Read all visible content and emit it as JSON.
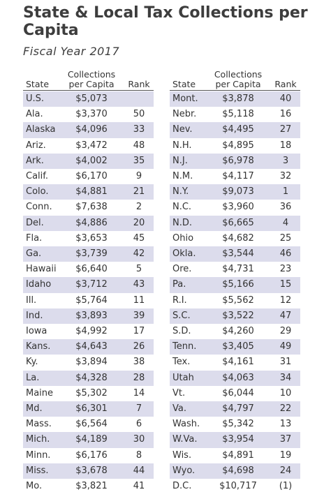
{
  "header": {
    "title": "State & Local Tax Collections per Capita",
    "subtitle": "Fiscal Year 2017"
  },
  "tables": [
    {
      "columns": [
        "State",
        "Collections per Capita",
        "Rank"
      ],
      "rows": [
        [
          "U.S.",
          "$5,073",
          null
        ],
        [
          "Ala.",
          "$3,370",
          50
        ],
        [
          "Alaska",
          "$4,096",
          33
        ],
        [
          "Ariz.",
          "$3,472",
          48
        ],
        [
          "Ark.",
          "$4,002",
          35
        ],
        [
          "Calif.",
          "$6,170",
          9
        ],
        [
          "Colo.",
          "$4,881",
          21
        ],
        [
          "Conn.",
          "$7,638",
          2
        ],
        [
          "Del.",
          "$4,886",
          20
        ],
        [
          "Fla.",
          "$3,653",
          45
        ],
        [
          "Ga.",
          "$3,739",
          42
        ],
        [
          "Hawaii",
          "$6,640",
          5
        ],
        [
          "Idaho",
          "$3,712",
          43
        ],
        [
          "Ill.",
          "$5,764",
          11
        ],
        [
          "Ind.",
          "$3,893",
          39
        ],
        [
          "Iowa",
          "$4,992",
          17
        ],
        [
          "Kans.",
          "$4,643",
          26
        ],
        [
          "Ky.",
          "$3,894",
          38
        ],
        [
          "La.",
          "$4,328",
          28
        ],
        [
          "Maine",
          "$5,302",
          14
        ],
        [
          "Md.",
          "$6,301",
          7
        ],
        [
          "Mass.",
          "$6,564",
          6
        ],
        [
          "Mich.",
          "$4,189",
          30
        ],
        [
          "Minn.",
          "$6,176",
          8
        ],
        [
          "Miss.",
          "$3,678",
          44
        ],
        [
          "Mo.",
          "$3,821",
          41
        ]
      ]
    },
    {
      "columns": [
        "State",
        "Collections per Capita",
        "Rank"
      ],
      "rows": [
        [
          "Mont.",
          "$3,878",
          40
        ],
        [
          "Nebr.",
          "$5,118",
          16
        ],
        [
          "Nev.",
          "$4,495",
          27
        ],
        [
          "N.H.",
          "$4,895",
          18
        ],
        [
          "N.J.",
          "$6,978",
          3
        ],
        [
          "N.M.",
          "$4,117",
          32
        ],
        [
          "N.Y.",
          "$9,073",
          1
        ],
        [
          "N.C.",
          "$3,960",
          36
        ],
        [
          "N.D.",
          "$6,665",
          4
        ],
        [
          "Ohio",
          "$4,682",
          25
        ],
        [
          "Okla.",
          "$3,544",
          46
        ],
        [
          "Ore.",
          "$4,731",
          23
        ],
        [
          "Pa.",
          "$5,166",
          15
        ],
        [
          "R.I.",
          "$5,562",
          12
        ],
        [
          "S.C.",
          "$3,522",
          47
        ],
        [
          "S.D.",
          "$4,260",
          29
        ],
        [
          "Tenn.",
          "$3,405",
          49
        ],
        [
          "Tex.",
          "$4,161",
          31
        ],
        [
          "Utah",
          "$4,063",
          34
        ],
        [
          "Vt.",
          "$6,044",
          10
        ],
        [
          "Va.",
          "$4,797",
          22
        ],
        [
          "Wash.",
          "$5,342",
          13
        ],
        [
          "W.Va.",
          "$3,954",
          37
        ],
        [
          "Wis.",
          "$4,891",
          19
        ],
        [
          "Wyo.",
          "$4,698",
          24
        ],
        [
          "D.C.",
          "$10,717",
          "(1)"
        ]
      ]
    }
  ]
}
